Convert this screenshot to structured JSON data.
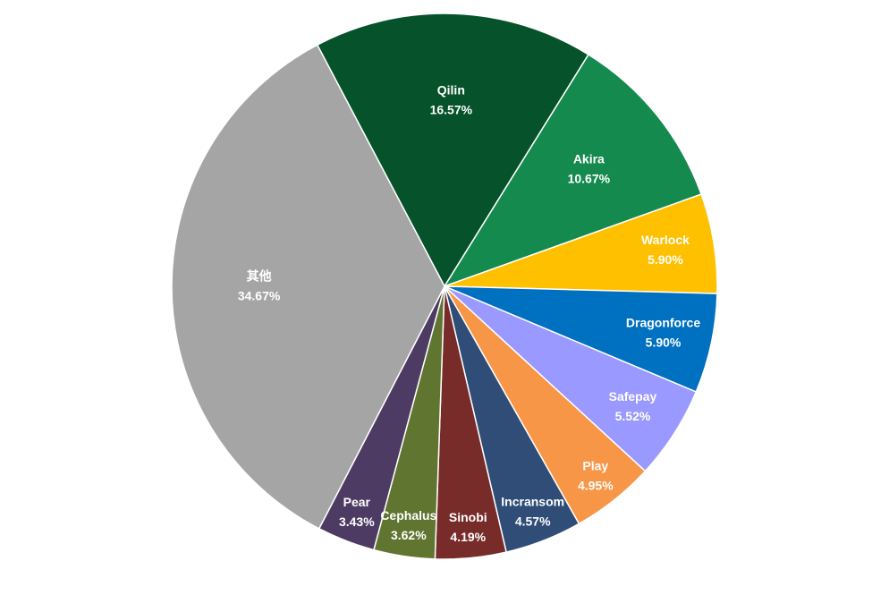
{
  "chart_data": {
    "type": "pie",
    "categories": [
      "Qilin",
      "Akira",
      "Warlock",
      "Dragonforce",
      "Safepay",
      "Play",
      "Incransom",
      "Sinobi",
      "Cephalus",
      "Pear",
      "其他"
    ],
    "values": [
      16.57,
      10.67,
      5.9,
      5.9,
      5.52,
      4.95,
      4.57,
      4.19,
      3.62,
      3.43,
      34.67
    ],
    "value_labels": [
      "16.57%",
      "10.67%",
      "5.90%",
      "5.90%",
      "5.52%",
      "4.95%",
      "4.57%",
      "4.19%",
      "3.62%",
      "3.43%",
      "34.67%"
    ],
    "colors": [
      "#06522b",
      "#158a4f",
      "#ffc000",
      "#0070c0",
      "#9999ff",
      "#f79646",
      "#2f4d77",
      "#772c2a",
      "#5f7530",
      "#4e3b63",
      "#a5a5a5"
    ]
  }
}
